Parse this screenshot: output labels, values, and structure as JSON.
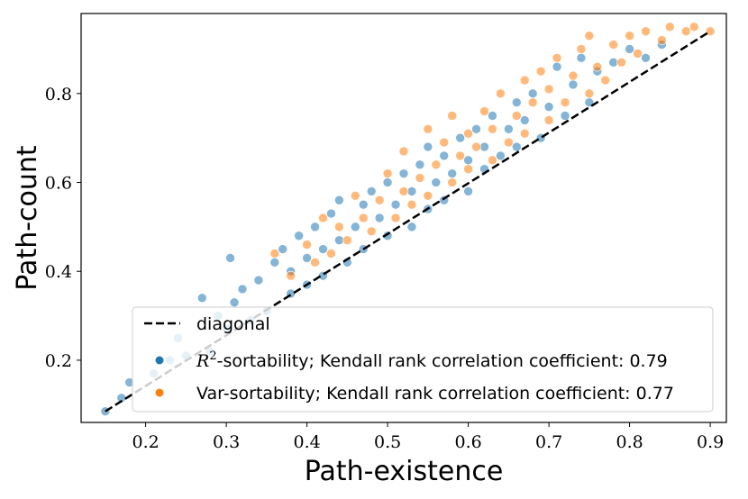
{
  "chart_data": {
    "type": "scatter",
    "title": "",
    "xlabel": "Path-existence",
    "ylabel": "Path-count",
    "xlim": [
      0.12,
      0.92
    ],
    "ylim": [
      0.06,
      0.98
    ],
    "xticks": [
      0.2,
      0.3,
      0.4,
      0.5,
      0.6,
      0.7,
      0.8,
      0.9
    ],
    "yticks": [
      0.2,
      0.4,
      0.6,
      0.8
    ],
    "grid": false,
    "legend_position": "lower-right",
    "colors": {
      "r2": "#1f77b4",
      "var": "#ff7f0e",
      "diagonal": "#000000",
      "frame": "#000000"
    },
    "diagonal": {
      "name": "diagonal",
      "x": [
        0.15,
        0.9
      ],
      "y": [
        0.085,
        0.94
      ]
    },
    "series": [
      {
        "key": "r2",
        "name": "R2-sortability; Kendall rank correlation coefficient: 0.79",
        "legend_prefix": "-sortability; Kendall rank correlation coefficient: 0.79",
        "points": [
          [
            0.15,
            0.085
          ],
          [
            0.17,
            0.115
          ],
          [
            0.18,
            0.15
          ],
          [
            0.21,
            0.17
          ],
          [
            0.23,
            0.2
          ],
          [
            0.24,
            0.25
          ],
          [
            0.25,
            0.21
          ],
          [
            0.27,
            0.34
          ],
          [
            0.28,
            0.22
          ],
          [
            0.29,
            0.3
          ],
          [
            0.3,
            0.27
          ],
          [
            0.305,
            0.43
          ],
          [
            0.31,
            0.33
          ],
          [
            0.32,
            0.36
          ],
          [
            0.33,
            0.29
          ],
          [
            0.34,
            0.38
          ],
          [
            0.35,
            0.31
          ],
          [
            0.36,
            0.42
          ],
          [
            0.37,
            0.45
          ],
          [
            0.38,
            0.35
          ],
          [
            0.38,
            0.4
          ],
          [
            0.39,
            0.48
          ],
          [
            0.4,
            0.37
          ],
          [
            0.4,
            0.43
          ],
          [
            0.41,
            0.5
          ],
          [
            0.42,
            0.45
          ],
          [
            0.42,
            0.39
          ],
          [
            0.43,
            0.53
          ],
          [
            0.44,
            0.47
          ],
          [
            0.44,
            0.56
          ],
          [
            0.45,
            0.42
          ],
          [
            0.46,
            0.5
          ],
          [
            0.47,
            0.55
          ],
          [
            0.47,
            0.45
          ],
          [
            0.48,
            0.58
          ],
          [
            0.49,
            0.52
          ],
          [
            0.5,
            0.48
          ],
          [
            0.5,
            0.6
          ],
          [
            0.51,
            0.55
          ],
          [
            0.52,
            0.62
          ],
          [
            0.53,
            0.5
          ],
          [
            0.53,
            0.58
          ],
          [
            0.54,
            0.64
          ],
          [
            0.55,
            0.54
          ],
          [
            0.55,
            0.68
          ],
          [
            0.56,
            0.6
          ],
          [
            0.57,
            0.56
          ],
          [
            0.57,
            0.66
          ],
          [
            0.58,
            0.62
          ],
          [
            0.59,
            0.7
          ],
          [
            0.6,
            0.58
          ],
          [
            0.6,
            0.65
          ],
          [
            0.61,
            0.72
          ],
          [
            0.62,
            0.63
          ],
          [
            0.62,
            0.68
          ],
          [
            0.63,
            0.75
          ],
          [
            0.64,
            0.66
          ],
          [
            0.65,
            0.72
          ],
          [
            0.66,
            0.78
          ],
          [
            0.66,
            0.68
          ],
          [
            0.67,
            0.74
          ],
          [
            0.68,
            0.8
          ],
          [
            0.69,
            0.7
          ],
          [
            0.7,
            0.77
          ],
          [
            0.71,
            0.86
          ],
          [
            0.72,
            0.75
          ],
          [
            0.73,
            0.82
          ],
          [
            0.74,
            0.88
          ],
          [
            0.75,
            0.78
          ],
          [
            0.76,
            0.85
          ],
          [
            0.78,
            0.87
          ],
          [
            0.8,
            0.9
          ],
          [
            0.82,
            0.88
          ],
          [
            0.84,
            0.91
          ]
        ]
      },
      {
        "key": "var",
        "name": "Var-sortability; Kendall rank correlation coefficient: 0.77",
        "legend_prefix": "Var-sortability; Kendall rank correlation coefficient: 0.77",
        "points": [
          [
            0.36,
            0.44
          ],
          [
            0.38,
            0.39
          ],
          [
            0.4,
            0.46
          ],
          [
            0.41,
            0.42
          ],
          [
            0.42,
            0.52
          ],
          [
            0.43,
            0.44
          ],
          [
            0.44,
            0.5
          ],
          [
            0.45,
            0.47
          ],
          [
            0.46,
            0.57
          ],
          [
            0.47,
            0.52
          ],
          [
            0.48,
            0.49
          ],
          [
            0.49,
            0.56
          ],
          [
            0.5,
            0.62
          ],
          [
            0.51,
            0.52
          ],
          [
            0.52,
            0.58
          ],
          [
            0.52,
            0.67
          ],
          [
            0.53,
            0.55
          ],
          [
            0.54,
            0.61
          ],
          [
            0.55,
            0.72
          ],
          [
            0.55,
            0.57
          ],
          [
            0.56,
            0.64
          ],
          [
            0.57,
            0.69
          ],
          [
            0.58,
            0.6
          ],
          [
            0.58,
            0.75
          ],
          [
            0.59,
            0.66
          ],
          [
            0.6,
            0.63
          ],
          [
            0.6,
            0.71
          ],
          [
            0.61,
            0.68
          ],
          [
            0.62,
            0.76
          ],
          [
            0.63,
            0.65
          ],
          [
            0.63,
            0.72
          ],
          [
            0.64,
            0.8
          ],
          [
            0.65,
            0.69
          ],
          [
            0.66,
            0.75
          ],
          [
            0.67,
            0.83
          ],
          [
            0.67,
            0.71
          ],
          [
            0.68,
            0.78
          ],
          [
            0.69,
            0.85
          ],
          [
            0.7,
            0.74
          ],
          [
            0.7,
            0.81
          ],
          [
            0.71,
            0.88
          ],
          [
            0.72,
            0.78
          ],
          [
            0.73,
            0.84
          ],
          [
            0.74,
            0.9
          ],
          [
            0.75,
            0.8
          ],
          [
            0.75,
            0.93
          ],
          [
            0.76,
            0.86
          ],
          [
            0.77,
            0.83
          ],
          [
            0.78,
            0.91
          ],
          [
            0.79,
            0.87
          ],
          [
            0.8,
            0.93
          ],
          [
            0.81,
            0.89
          ],
          [
            0.82,
            0.94
          ],
          [
            0.84,
            0.92
          ],
          [
            0.85,
            0.95
          ],
          [
            0.87,
            0.94
          ],
          [
            0.88,
            0.95
          ],
          [
            0.9,
            0.94
          ]
        ]
      }
    ]
  }
}
